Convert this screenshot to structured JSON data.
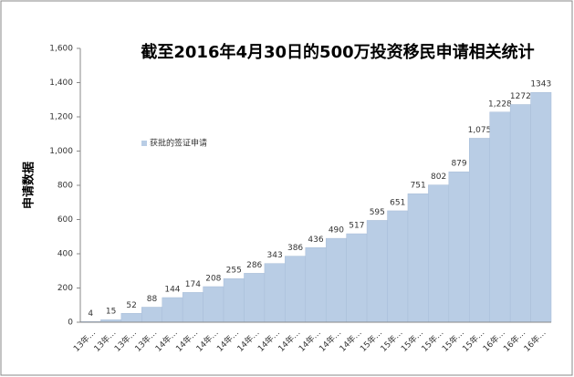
{
  "chart_data": {
    "type": "bar",
    "title": "截至2016年4月30日的500万投资移民申请相关统计",
    "y_label": "申请数据",
    "legend_position": "upper left",
    "categories": [
      "13年…",
      "13年…",
      "13年…",
      "13年…",
      "14年…",
      "14年…",
      "14年…",
      "14年…",
      "14年…",
      "14年…",
      "14年…",
      "14年…",
      "14年…",
      "14年…",
      "15年…",
      "15年…",
      "15年…",
      "15年…",
      "15年…",
      "15年…",
      "16年…",
      "16年…",
      "16年…"
    ],
    "series": [
      {
        "name": "获批的签证申请",
        "color": "#b9cde5",
        "values": [
          4,
          15,
          52,
          88,
          144,
          174,
          208,
          255,
          286,
          343,
          386,
          436,
          490,
          517,
          595,
          651,
          751,
          802,
          879,
          1075,
          1228,
          1272,
          1343
        ],
        "value_labels": [
          "4",
          "15",
          "52",
          "88",
          "144",
          "174",
          "208",
          "255",
          "286",
          "343",
          "386",
          "436",
          "490",
          "517",
          "595",
          "651",
          "751",
          "802",
          "879",
          "1,075",
          "1,228",
          "1272",
          "1343"
        ]
      }
    ],
    "ylim": [
      0,
      1600
    ],
    "yticks": [
      0,
      200,
      400,
      600,
      800,
      {
        "value": 1000,
        "label": "1,000"
      },
      {
        "value": 1200,
        "label": "1,200"
      },
      {
        "value": 1400,
        "label": "1,400"
      },
      {
        "value": 1600,
        "label": "1,600"
      }
    ]
  }
}
